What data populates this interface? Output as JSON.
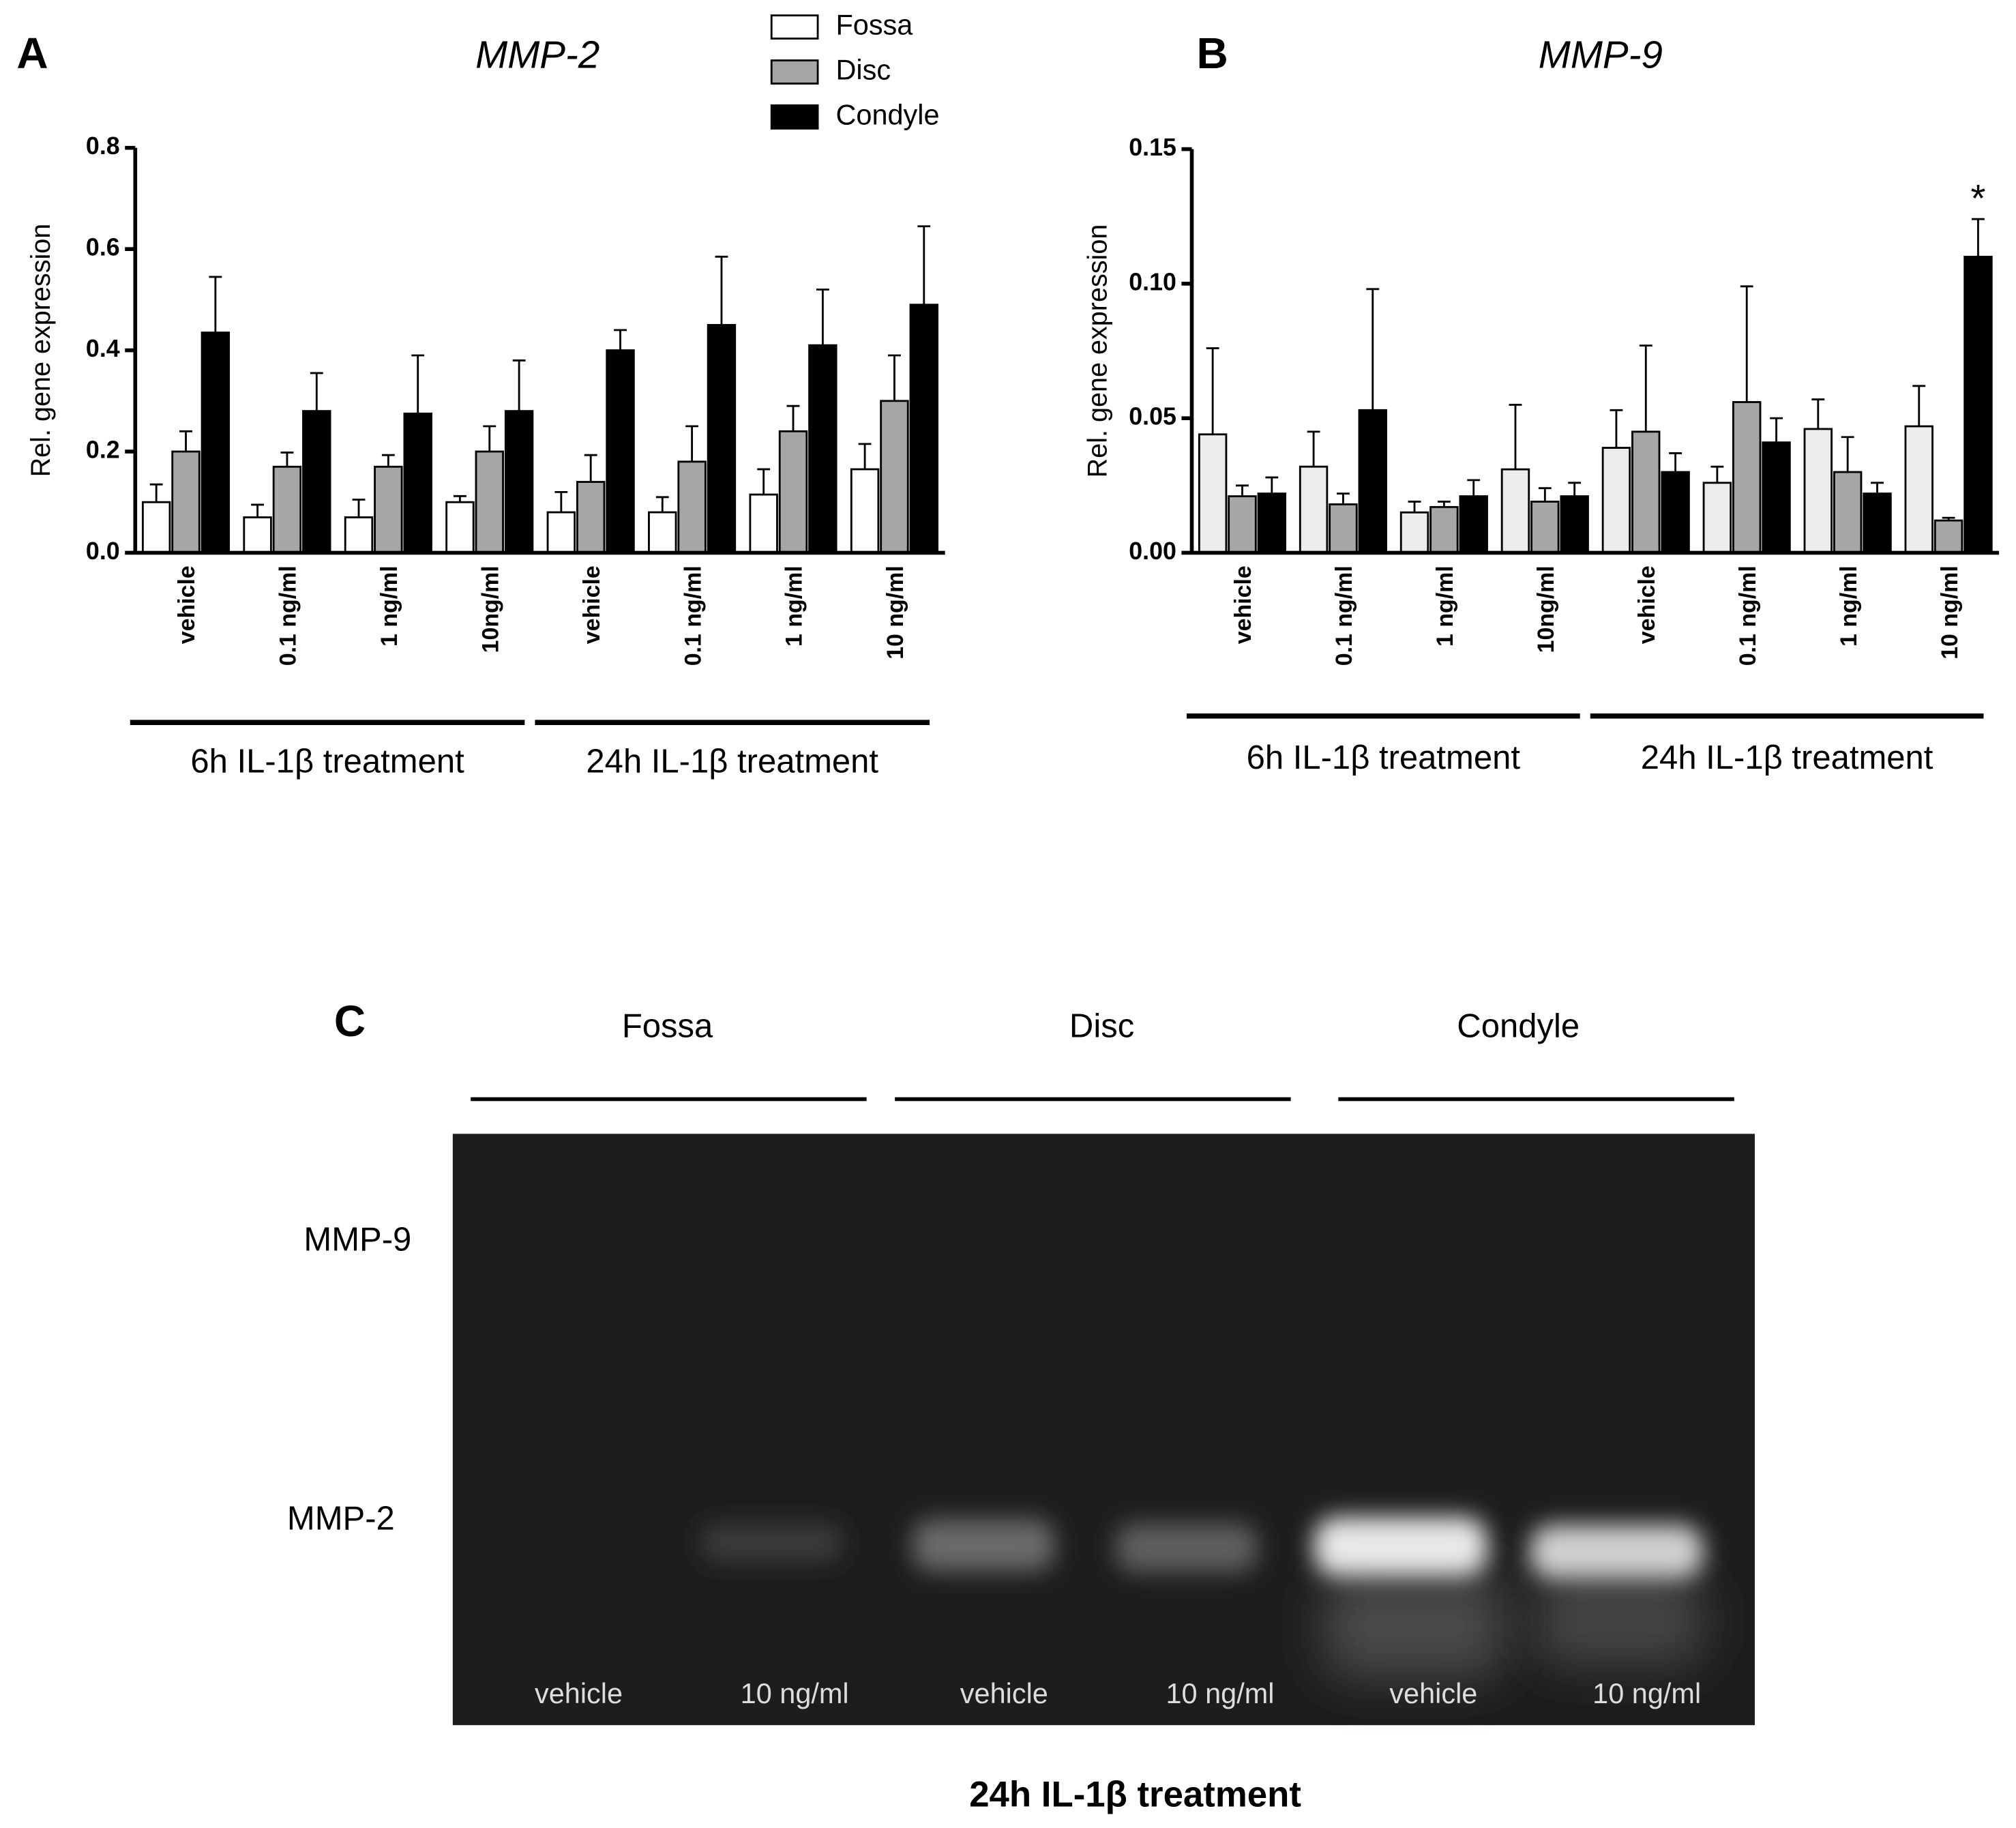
{
  "chart_data": [
    {
      "type": "bar",
      "panel": "A",
      "title": "MMP-2",
      "y_label": "Rel. gene expression",
      "categories": [
        "vehicle",
        "0.1 ng/ml",
        "1 ng/ml",
        "10ng/ml",
        "vehicle",
        "0.1 ng/ml",
        "1 ng/ml",
        "10 ng/ml"
      ],
      "groups": [
        {
          "label": "6h IL-1β treatment",
          "from": 0,
          "to": 3
        },
        {
          "label": "24h IL-1β treatment",
          "from": 4,
          "to": 7
        }
      ],
      "series": [
        {
          "name": "Fossa",
          "color": "#ffffff",
          "values": [
            0.1,
            0.07,
            0.07,
            0.1,
            0.08,
            0.08,
            0.115,
            0.165
          ],
          "errors": [
            0.035,
            0.025,
            0.035,
            0.012,
            0.04,
            0.03,
            0.05,
            0.05
          ]
        },
        {
          "name": "Disc",
          "color": "#a6a6a6",
          "values": [
            0.2,
            0.17,
            0.17,
            0.2,
            0.14,
            0.18,
            0.24,
            0.3
          ],
          "errors": [
            0.04,
            0.028,
            0.023,
            0.05,
            0.053,
            0.07,
            0.05,
            0.09
          ]
        },
        {
          "name": "Condyle",
          "color": "#000000",
          "values": [
            0.435,
            0.28,
            0.275,
            0.28,
            0.4,
            0.45,
            0.41,
            0.49
          ],
          "errors": [
            0.11,
            0.075,
            0.115,
            0.1,
            0.04,
            0.135,
            0.11,
            0.155
          ]
        }
      ],
      "ylim": [
        0,
        0.8
      ],
      "yticks": [
        {
          "value": 0,
          "label": "0.0"
        },
        0.2,
        0.4,
        0.6,
        0.8
      ],
      "legend": "top-right"
    },
    {
      "type": "bar",
      "panel": "B",
      "title": "MMP-9",
      "y_label": "Rel. gene expression",
      "categories": [
        "vehicle",
        "0.1 ng/ml",
        "1 ng/ml",
        "10ng/ml",
        "vehicle",
        "0.1 ng/ml",
        "1 ng/ml",
        "10 ng/ml"
      ],
      "groups": [
        {
          "label": "6h IL-1β treatment",
          "from": 0,
          "to": 3
        },
        {
          "label": "24h IL-1β treatment",
          "from": 4,
          "to": 7
        }
      ],
      "series": [
        {
          "name": "Fossa",
          "color": "#ececec",
          "values": [
            0.044,
            0.032,
            0.015,
            0.031,
            0.039,
            0.026,
            0.046,
            0.047
          ],
          "errors": [
            0.032,
            0.013,
            0.004,
            0.024,
            0.014,
            0.006,
            0.011,
            0.015
          ]
        },
        {
          "name": "Disc",
          "color": "#a6a6a6",
          "values": [
            0.021,
            0.018,
            0.017,
            0.019,
            0.045,
            0.056,
            0.03,
            0.012
          ],
          "errors": [
            0.004,
            0.004,
            0.002,
            0.005,
            0.032,
            0.043,
            0.013,
            0.001
          ]
        },
        {
          "name": "Condyle",
          "color": "#000000",
          "values": [
            0.022,
            0.053,
            0.021,
            0.021,
            0.03,
            0.041,
            0.022,
            0.11
          ],
          "errors": [
            0.006,
            0.045,
            0.006,
            0.005,
            0.007,
            0.009,
            0.004,
            0.014
          ]
        }
      ],
      "annotations": [
        {
          "text": "*",
          "series": 2,
          "index": 7
        }
      ],
      "ylim": [
        0,
        0.15
      ],
      "yticks": [
        {
          "value": 0,
          "label": "0.00"
        },
        0.05,
        {
          "value": 0.1,
          "label": "0.10"
        },
        0.15
      ]
    }
  ],
  "panel_c": {
    "label": "C",
    "tissues": [
      "Fossa",
      "Disc",
      "Condyle"
    ],
    "bands": [
      "MMP-9",
      "MMP-2"
    ],
    "lanes": [
      "vehicle",
      "10 ng/ml",
      "vehicle",
      "10 ng/ml",
      "vehicle",
      "10 ng/ml"
    ],
    "caption": "24h IL-1β treatment"
  }
}
